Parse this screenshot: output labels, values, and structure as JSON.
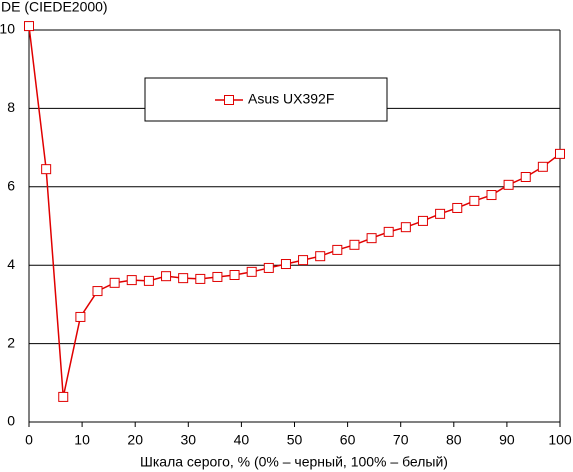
{
  "chart_data": {
    "type": "line",
    "y_label": "DE (CIEDE2000)",
    "x_label": "Шкала серого, % (0% – черный, 100% – белый)",
    "x": [
      0,
      3.23,
      6.45,
      9.68,
      12.9,
      16.13,
      19.35,
      22.58,
      25.81,
      29.03,
      32.26,
      35.48,
      38.71,
      41.94,
      45.16,
      48.39,
      51.61,
      54.84,
      58.06,
      61.29,
      64.52,
      67.74,
      70.97,
      74.19,
      77.42,
      80.65,
      83.87,
      87.1,
      90.32,
      93.55,
      96.77,
      100
    ],
    "series": [
      {
        "name": "Asus UX392F",
        "color": "#e00000",
        "values": [
          10.1,
          6.45,
          0.64,
          2.68,
          3.34,
          3.55,
          3.62,
          3.6,
          3.72,
          3.67,
          3.65,
          3.7,
          3.75,
          3.83,
          3.93,
          4.03,
          4.13,
          4.23,
          4.39,
          4.52,
          4.69,
          4.85,
          4.97,
          5.13,
          5.31,
          5.46,
          5.64,
          5.79,
          6.05,
          6.25,
          6.51,
          6.84
        ]
      }
    ],
    "xlim": [
      0,
      100
    ],
    "xticks": [
      0,
      10,
      20,
      30,
      40,
      50,
      60,
      70,
      80,
      90,
      100
    ],
    "ylim": [
      0,
      10
    ],
    "yticks": [
      0,
      2,
      4,
      6,
      8,
      10
    ],
    "grid": true
  }
}
